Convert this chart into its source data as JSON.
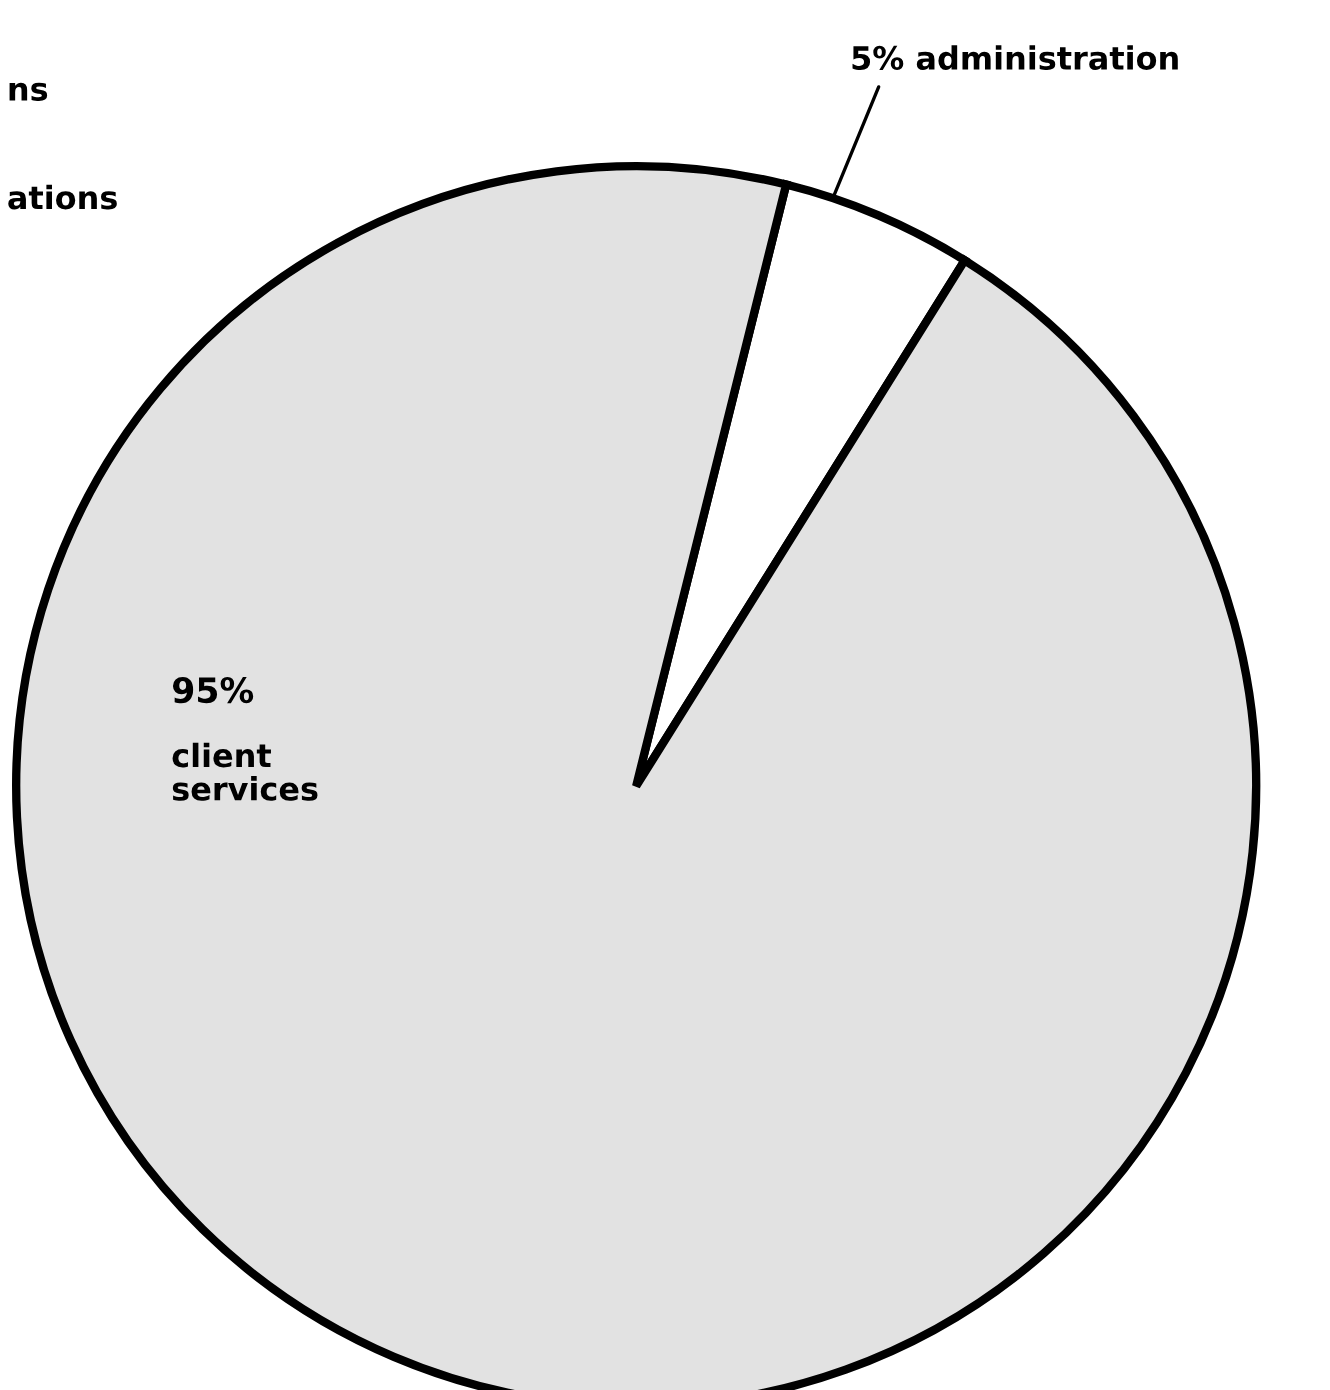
{
  "chart_data": {
    "type": "pie",
    "categories": [
      "administration",
      "client services"
    ],
    "values": [
      5,
      95
    ],
    "colors": [
      "#ffffff",
      "#e2e2e2"
    ],
    "value_labels": [
      "5%",
      "95%"
    ],
    "annotations": [
      "ns",
      "ations"
    ]
  }
}
